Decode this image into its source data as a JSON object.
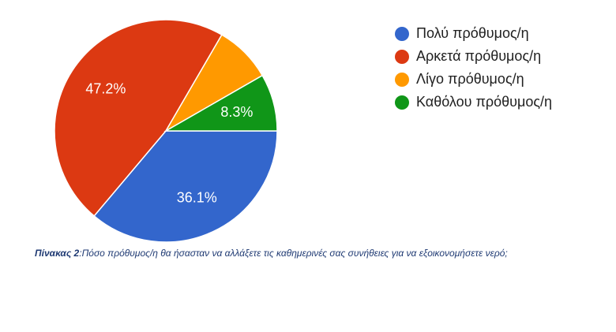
{
  "chart_data": {
    "type": "pie",
    "slices": [
      {
        "label": "Πολύ πρόθυμος/η",
        "value": 36.1,
        "display": "36.1%",
        "color": "#3366cc"
      },
      {
        "label": "Αρκετά πρόθυμος/η",
        "value": 47.2,
        "display": "47.2%",
        "color": "#dc3912"
      },
      {
        "label": "Λίγο πρόθυμος/η",
        "value": 8.3,
        "display": "",
        "color": "#ff9900"
      },
      {
        "label": "Καθόλου πρόθυμος/η",
        "value": 8.3,
        "display": "8.3%",
        "color": "#109618"
      }
    ],
    "start_angle_deg": 90,
    "direction": "clockwise",
    "legend_position": "right",
    "label_color": "#ffffff"
  },
  "caption": {
    "prefix": "Πίνακας 2",
    "text": ":Πόσο πρόθυμος/η θα ήσασταν να αλλάξετε τις καθημερινές σας συνήθειες για να εξοικονομήσετε νερό;"
  }
}
